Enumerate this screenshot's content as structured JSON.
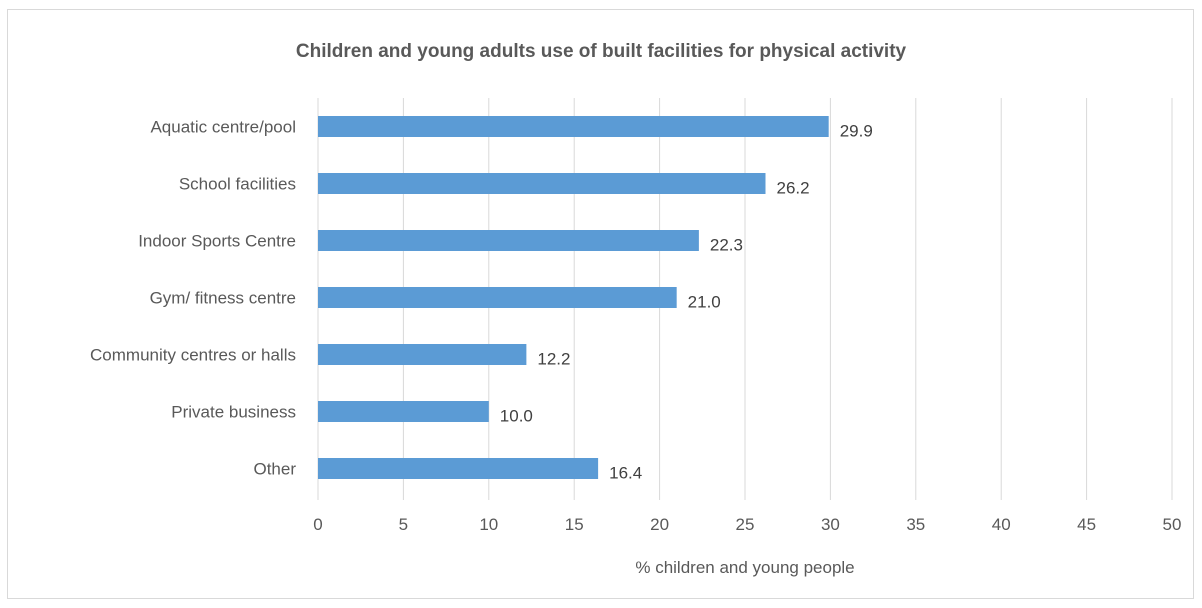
{
  "chart_data": {
    "type": "bar",
    "orientation": "horizontal",
    "title": "Children and young adults use of built facilities for physical activity",
    "xlabel": "% children and young people",
    "ylabel": "",
    "categories": [
      "Aquatic centre/pool",
      "School facilities",
      "Indoor Sports Centre",
      "Gym/ fitness centre",
      "Community centres or halls",
      "Private business",
      "Other"
    ],
    "values": [
      29.9,
      26.2,
      22.3,
      21.0,
      12.2,
      10.0,
      16.4
    ],
    "value_labels": [
      "29.9",
      "26.2",
      "22.3",
      "21.0",
      "12.2",
      "10.0",
      "16.4"
    ],
    "xlim": [
      0,
      50
    ],
    "xticks": [
      0,
      5,
      10,
      15,
      20,
      25,
      30,
      35,
      40,
      45,
      50
    ],
    "grid": "vertical",
    "legend": "none",
    "bar_color": "#5b9bd5"
  }
}
